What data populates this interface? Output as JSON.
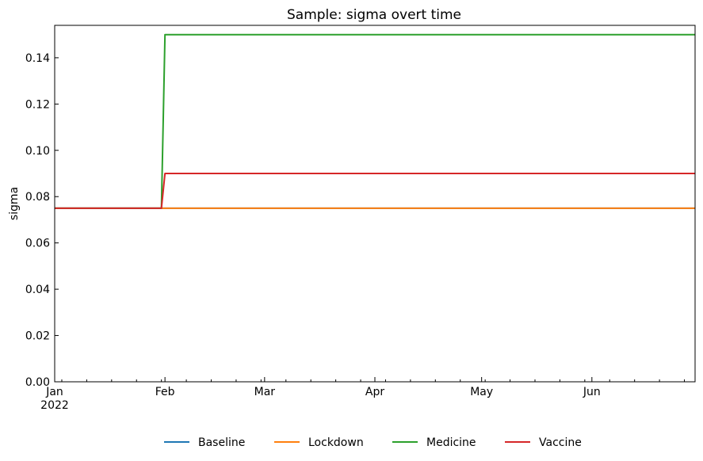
{
  "chart_data": {
    "type": "line",
    "title": "Sample: sigma overt time",
    "xlabel": "",
    "ylabel": "sigma",
    "x_axis": {
      "type": "date",
      "range": [
        "2022-01-01",
        "2022-06-30"
      ],
      "major_ticks": [
        {
          "date": "2022-01-01",
          "label": "Jan",
          "sublabel": "2022"
        },
        {
          "date": "2022-02-01",
          "label": "Feb",
          "sublabel": ""
        },
        {
          "date": "2022-03-01",
          "label": "Mar",
          "sublabel": ""
        },
        {
          "date": "2022-04-01",
          "label": "Apr",
          "sublabel": ""
        },
        {
          "date": "2022-05-01",
          "label": "May",
          "sublabel": ""
        },
        {
          "date": "2022-06-01",
          "label": "Jun",
          "sublabel": ""
        }
      ],
      "minor_ticks": [
        "2022-01-03",
        "2022-01-10",
        "2022-01-17",
        "2022-01-24",
        "2022-01-31",
        "2022-02-07",
        "2022-02-14",
        "2022-02-21",
        "2022-02-28",
        "2022-03-07",
        "2022-03-14",
        "2022-03-21",
        "2022-03-28",
        "2022-04-04",
        "2022-04-11",
        "2022-04-18",
        "2022-04-25",
        "2022-05-02",
        "2022-05-09",
        "2022-05-16",
        "2022-05-23",
        "2022-05-30",
        "2022-06-06",
        "2022-06-13",
        "2022-06-20",
        "2022-06-27"
      ]
    },
    "y_axis": {
      "range": [
        0,
        0.154
      ],
      "ticks": [
        0.0,
        0.02,
        0.04,
        0.06,
        0.08,
        0.1,
        0.12,
        0.14
      ],
      "tick_labels": [
        "0.00",
        "0.02",
        "0.04",
        "0.06",
        "0.08",
        "0.10",
        "0.12",
        "0.14"
      ]
    },
    "grid": false,
    "legend": {
      "placement": "bottom-center",
      "orientation": "horizontal"
    },
    "series": [
      {
        "name": "Baseline",
        "color": "#1f77b4",
        "points": [
          [
            "2022-01-01",
            0.075
          ],
          [
            "2022-06-30",
            0.075
          ]
        ]
      },
      {
        "name": "Lockdown",
        "color": "#ff7f0e",
        "points": [
          [
            "2022-01-01",
            0.075
          ],
          [
            "2022-06-30",
            0.075
          ]
        ]
      },
      {
        "name": "Medicine",
        "color": "#2ca02c",
        "points": [
          [
            "2022-01-01",
            0.075
          ],
          [
            "2022-01-31",
            0.075
          ],
          [
            "2022-02-01",
            0.15
          ],
          [
            "2022-06-30",
            0.15
          ]
        ]
      },
      {
        "name": "Vaccine",
        "color": "#d62728",
        "points": [
          [
            "2022-01-01",
            0.075
          ],
          [
            "2022-01-31",
            0.075
          ],
          [
            "2022-02-01",
            0.09
          ],
          [
            "2022-06-30",
            0.09
          ]
        ]
      }
    ]
  }
}
